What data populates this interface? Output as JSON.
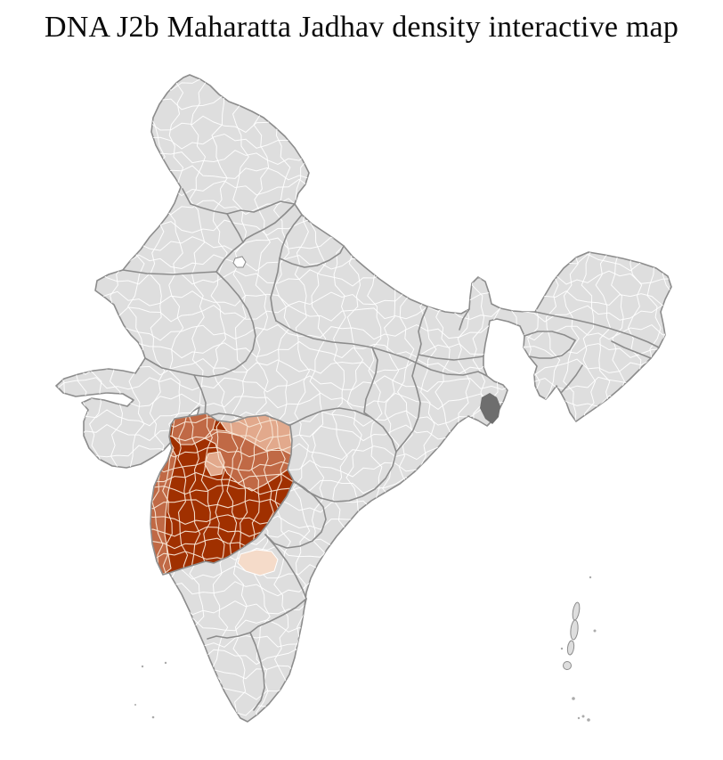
{
  "page": {
    "title": "DNA J2b Maharatta Jadhav density interactive map"
  },
  "map": {
    "kind": "india-district-choropleth",
    "colors": {
      "background": "#ffffff",
      "land": "#dedede",
      "district_line": "#ffffff",
      "state_line": "#8c8c8c",
      "cluster_line": "#f7e4d3",
      "delta": "#6e6e6e",
      "island": "#ababab",
      "highest": "#a03000",
      "high": "#c06945",
      "medium": "#e2a98c",
      "low": "#f5dbc9",
      "title": "#0a0a0a"
    },
    "density_levels": [
      {
        "rank": 1,
        "color": "#a03000"
      },
      {
        "rank": 2,
        "color": "#c06945"
      },
      {
        "rank": 3,
        "color": "#e2a98c"
      },
      {
        "rank": 4,
        "color": "#f5dbc9"
      }
    ]
  }
}
